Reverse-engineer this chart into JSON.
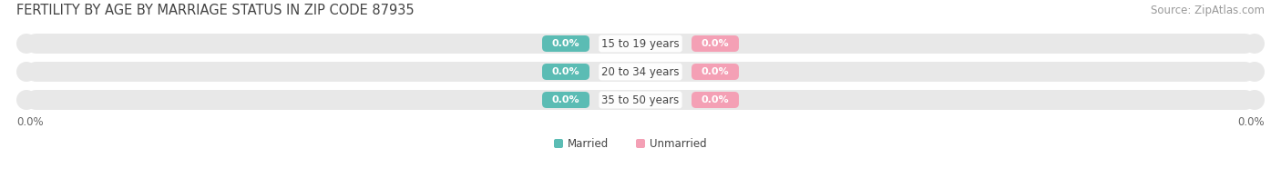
{
  "title": "FERTILITY BY AGE BY MARRIAGE STATUS IN ZIP CODE 87935",
  "source": "Source: ZipAtlas.com",
  "categories": [
    "15 to 19 years",
    "20 to 34 years",
    "35 to 50 years"
  ],
  "married_color": "#5bbcb4",
  "unmarried_color": "#f4a0b5",
  "bar_bg_color": "#e8e8e8",
  "bg_color": "#ffffff",
  "title_fontsize": 10.5,
  "source_fontsize": 8.5,
  "label_fontsize": 8.5,
  "badge_fontsize": 8,
  "axis_label_left": "0.0%",
  "axis_label_right": "0.0%",
  "legend_married": "Married",
  "legend_unmarried": "Unmarried"
}
